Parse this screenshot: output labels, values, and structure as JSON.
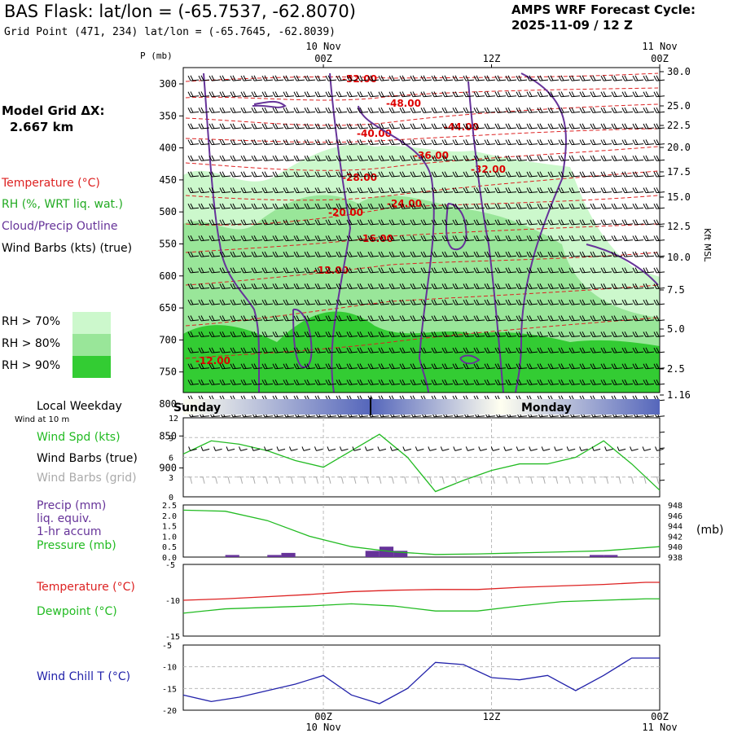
{
  "header": {
    "title": "BAS Flask:  lat/lon = (-65.7537, -62.8070)",
    "subtitle": "Grid Point (471, 234) lat/lon = (-65.7645, -62.8039)",
    "cycle_label": "AMPS WRF Forecast Cycle:",
    "cycle_value": "2025-11-09 / 12  Z"
  },
  "sidebar": {
    "grid_label": "Model Grid ΔX:",
    "grid_value": "2.667 km",
    "legend_temperature": "Temperature (°C)",
    "legend_rh": "RH (%, WRT liq. wat.)",
    "legend_cloud": "Cloud/Precip Outline",
    "legend_wind": "Wind Barbs (kts) (true)",
    "rh_levels": [
      {
        "label": "RH > 70%",
        "color": "#ccf8cc"
      },
      {
        "label": "RH > 80%",
        "color": "#99e699"
      },
      {
        "label": "RH > 90%",
        "color": "#33cc33"
      }
    ]
  },
  "colors": {
    "temperature": "#dd2222",
    "rh_text": "#22aa22",
    "cloud": "#663399",
    "dewpoint": "#22bb22",
    "windchill": "#2222aa",
    "windspd": "#22bb22",
    "pressure": "#22bb22",
    "precip": "#663399",
    "gridbarbs": "#aaaaaa",
    "contour_label": "#dd0000"
  },
  "time_axis": {
    "top_labels": [
      {
        "date": "10 Nov",
        "hour": "00Z",
        "t": 12
      },
      {
        "hour": "12Z",
        "t": 24
      },
      {
        "date": "11 Nov",
        "hour": "00Z",
        "t": 36
      }
    ],
    "bottom_labels": [
      {
        "hour": "00Z",
        "date": "10 Nov",
        "t": 12
      },
      {
        "hour": "12Z",
        "t": 24
      },
      {
        "hour": "00Z",
        "date": "11 Nov",
        "t": 36
      }
    ],
    "t_range": [
      2,
      36
    ]
  },
  "chart_data": [
    {
      "type": "heatmap",
      "panel": "cross-section",
      "ylabel_left": "P (mb)",
      "ylabel_right": "Kft MSL",
      "pressure_ticks": [
        300,
        350,
        400,
        450,
        500,
        550,
        600,
        650,
        700,
        750,
        800,
        850,
        900
      ],
      "height_ticks": [
        "30.0",
        "25.0",
        "22.5",
        "20.0",
        "17.5",
        "15.0",
        "12.5",
        "10.0",
        "7.5",
        "5.0",
        "2.5",
        "1.16"
      ],
      "temperature_contour_labels": [
        "-52.00",
        "-48.00",
        "-44.00",
        "-40.00",
        "-36.00",
        "-32.00",
        "-28.00",
        "-24.00",
        "-20.00",
        "-16.00",
        "-12.00",
        "-12.00"
      ]
    },
    {
      "type": "line",
      "panel": "wind",
      "weekday_label": "Local Weekday",
      "wind_note": "Wind at 10 m",
      "days": [
        "Sunday",
        "Monday"
      ],
      "series_labels": [
        "Wind Spd (kts)",
        "Wind Barbs (true)",
        "Wind Barbs (grid)"
      ],
      "ylim": [
        0,
        12
      ],
      "yticks": [
        "12",
        "9",
        "6",
        "3",
        "0"
      ],
      "x": [
        2,
        4,
        6,
        8,
        10,
        12,
        14,
        16,
        18,
        20,
        22,
        24,
        26,
        28,
        30,
        32,
        34,
        36
      ],
      "values": [
        6.5,
        8.5,
        8.0,
        7.0,
        5.5,
        4.5,
        7.0,
        9.5,
        6.0,
        0.8,
        2.5,
        4.0,
        5.0,
        5.0,
        6.0,
        8.5,
        5.0,
        1.0
      ]
    },
    {
      "type": "line",
      "panel": "precip-pressure",
      "series_labels": [
        "Precip (mm)",
        "liq. equiv.",
        "1-hr accum",
        "Pressure (mb)"
      ],
      "y_unit_right": "(mb)",
      "yticks_left": [
        "2.5",
        "2.0",
        "1.5",
        "1.0",
        "0.5",
        "0.0"
      ],
      "yticks_right": [
        "948",
        "946",
        "944",
        "942",
        "940",
        "938"
      ],
      "ylim_left": [
        0,
        2.5
      ],
      "ylim_right": [
        938,
        948
      ],
      "pressure_x": [
        2,
        5,
        8,
        11,
        14,
        17,
        20,
        23,
        26,
        29,
        32,
        36
      ],
      "pressure": [
        947.0,
        946.8,
        945.0,
        942.0,
        940.0,
        939.0,
        938.5,
        938.6,
        938.8,
        939.0,
        939.2,
        940.0
      ],
      "precip": [
        {
          "t": 5,
          "mm": 0.1
        },
        {
          "t": 8,
          "mm": 0.1
        },
        {
          "t": 9,
          "mm": 0.2
        },
        {
          "t": 15,
          "mm": 0.3
        },
        {
          "t": 16,
          "mm": 0.5
        },
        {
          "t": 17,
          "mm": 0.3
        },
        {
          "t": 31,
          "mm": 0.1
        },
        {
          "t": 32,
          "mm": 0.1
        }
      ]
    },
    {
      "type": "line",
      "panel": "temperature",
      "series": [
        {
          "name": "Temperature (°C)",
          "values": [
            -10.0,
            -9.8,
            -9.5,
            -9.2,
            -8.8,
            -8.6,
            -8.5,
            -8.5,
            -8.2,
            -8.0,
            -7.8,
            -7.5,
            -7.5
          ]
        },
        {
          "name": "Dewpoint (°C)",
          "values": [
            -11.8,
            -11.2,
            -11.0,
            -10.8,
            -10.5,
            -10.8,
            -11.5,
            -11.5,
            -10.8,
            -10.2,
            -10.0,
            -9.8,
            -9.8
          ]
        }
      ],
      "x": [
        2,
        5,
        8,
        11,
        14,
        17,
        20,
        23,
        26,
        29,
        32,
        35,
        36
      ],
      "ylim": [
        -15,
        -5
      ],
      "yticks": [
        "-5",
        "-10",
        "-15"
      ]
    },
    {
      "type": "line",
      "panel": "windchill",
      "series_labels": [
        "Wind Chill T (°C)"
      ],
      "ylim": [
        -20,
        -5
      ],
      "yticks": [
        "-5",
        "-10",
        "-15",
        "-20"
      ],
      "x": [
        2,
        4,
        6,
        8,
        10,
        12,
        14,
        16,
        18,
        20,
        22,
        24,
        26,
        28,
        30,
        32,
        34,
        36
      ],
      "values": [
        -16.5,
        -18.0,
        -17.0,
        -15.5,
        -14.0,
        -12.0,
        -16.5,
        -18.5,
        -15.0,
        -9.0,
        -9.5,
        -12.5,
        -13.0,
        -12.0,
        -15.5,
        -12.0,
        -8.0,
        -8.0
      ]
    }
  ]
}
